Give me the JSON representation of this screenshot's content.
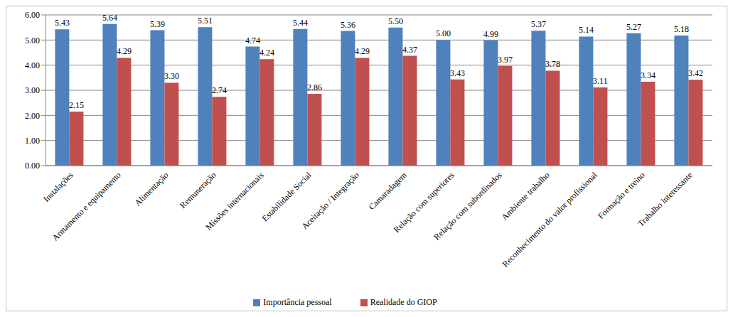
{
  "chart_data": {
    "type": "bar",
    "categories": [
      "Instalações",
      "Armamento e equipamento",
      "Alimentação",
      "Remuneração",
      "Missões internacionais",
      "Estabilidade Social",
      "Aceitação / Integração",
      "Camaradagem",
      "Relação com superiores",
      "Relação com subordinados",
      "Ambiente trabalho",
      "Reconhecimento do valor profissional",
      "Formação e treino",
      "Trabalho interessante"
    ],
    "series": [
      {
        "name": "Importância pessoal",
        "color": "#4f81bd",
        "values": [
          5.43,
          5.64,
          5.39,
          5.51,
          4.74,
          5.44,
          5.36,
          5.5,
          5.0,
          4.99,
          5.37,
          5.14,
          5.27,
          5.18
        ],
        "value_labels": [
          "5.43",
          "5.64",
          "5.39",
          "5.51",
          "4.74",
          "5.44",
          "5.36",
          "5.50",
          "5.00",
          "4.99",
          "5.37",
          "5.14",
          "5.27",
          "5.18"
        ]
      },
      {
        "name": "Realidade do GIOP",
        "color": "#c0504d",
        "values": [
          2.15,
          4.29,
          3.3,
          2.74,
          4.24,
          2.86,
          4.29,
          4.37,
          3.43,
          3.97,
          3.78,
          3.11,
          3.34,
          3.42
        ],
        "value_labels": [
          "2.15",
          "4.29",
          "3.30",
          "2.74",
          "4.24",
          "2.86",
          "4.29",
          "4.37",
          "3.43",
          "3.97",
          "3.78",
          "3.11",
          "3.34",
          "3.42"
        ]
      }
    ],
    "ylim": [
      0,
      6
    ],
    "yticks": [
      {
        "value": 0,
        "label": "0.00"
      },
      {
        "value": 1,
        "label": "1.00"
      },
      {
        "value": 2,
        "label": "2.00"
      },
      {
        "value": 3,
        "label": "3.00"
      },
      {
        "value": 4,
        "label": "4.00"
      },
      {
        "value": 5,
        "label": "5.00"
      },
      {
        "value": 6,
        "label": "6.00"
      }
    ],
    "grid": true,
    "legend": "bottom",
    "data_labels": true
  }
}
